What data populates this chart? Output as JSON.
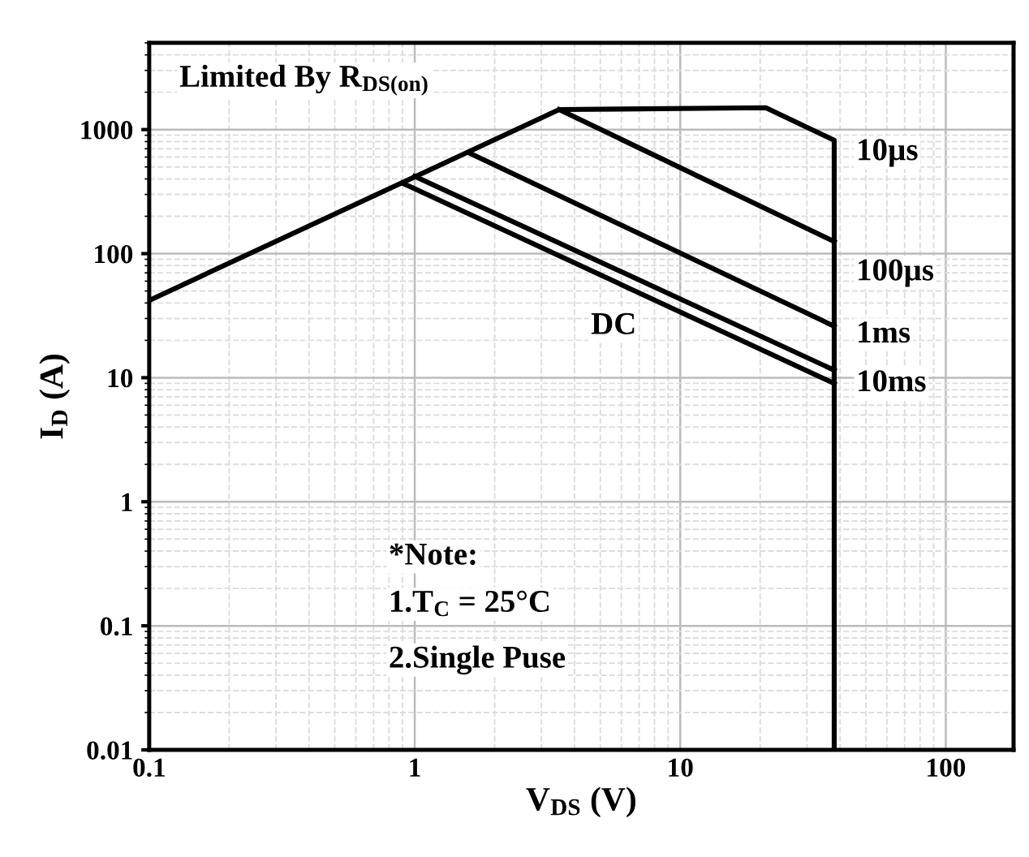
{
  "chart_data": {
    "type": "line",
    "xlabel": "V$_{DS}$ (V)",
    "ylabel": "I$_{D}$ (A)",
    "log": "xy",
    "xlim": [
      0.1,
      180
    ],
    "ylim": [
      0.01,
      5000
    ],
    "xticks": [
      0.1,
      1,
      10,
      100
    ],
    "yticks": [
      0.01,
      0.1,
      1,
      10,
      100,
      1000
    ],
    "grid": true,
    "line_style": "solid",
    "marker": "none",
    "series": [
      {
        "color": "#000000",
        "x": [
          0.1,
          3.5,
          21,
          38,
          38
        ],
        "values": [
          42,
          1450,
          1500,
          820,
          0.01
        ]
      },
      {
        "color": "#000000",
        "x": [
          3.5,
          38
        ],
        "values": [
          1450,
          125
        ]
      },
      {
        "color": "#000000",
        "x": [
          1.6,
          38
        ],
        "values": [
          650,
          26
        ]
      },
      {
        "color": "#000000",
        "x": [
          1.0,
          38
        ],
        "values": [
          420,
          11.5
        ]
      },
      {
        "color": "#000000",
        "x": [
          0.9,
          38
        ],
        "values": [
          370,
          9
        ]
      }
    ],
    "annotations": [
      "Limited By R$_{DS(on)}$",
      "10µs",
      "100µs",
      "1ms",
      "10ms",
      "DC",
      "*Note:",
      "1.T$_{C}$ = 25°C",
      "2.Single Puse"
    ]
  }
}
